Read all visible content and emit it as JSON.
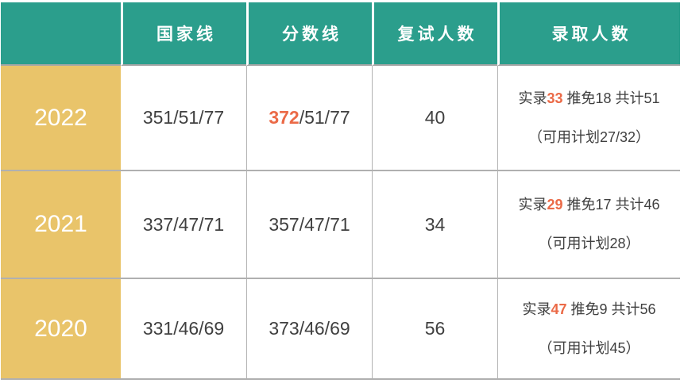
{
  "palette": {
    "header_bg": "#2B9E8C",
    "year_bg": "#E9C46A",
    "accent": "#EB6A47",
    "text_dark": "#404040",
    "grid_line": "#B0B0B0"
  },
  "chart_data": {
    "type": "table",
    "columns": [
      "",
      "国家线",
      "分数线",
      "复试人数",
      "录取人数"
    ],
    "rows": [
      {
        "year": "2022",
        "national_line": "351/51/77",
        "score_parts": {
          "highlight": "372",
          "rest": "/51/77"
        },
        "retest": "40",
        "admit_label": "实录",
        "admit_actual": "33",
        "admit_rest": " 推免18 共计51",
        "admit_plan": "（可用计划27/32）"
      },
      {
        "year": "2021",
        "national_line": "337/47/71",
        "score_parts": {
          "highlight": "",
          "rest": "357/47/71"
        },
        "retest": "34",
        "admit_label": "实录",
        "admit_actual": "29",
        "admit_rest": " 推免17 共计46",
        "admit_plan": "（可用计划28）"
      },
      {
        "year": "2020",
        "national_line": "331/46/69",
        "score_parts": {
          "highlight": "",
          "rest": "373/46/69"
        },
        "retest": "56",
        "admit_label": "实录",
        "admit_actual": "47",
        "admit_rest": " 推免9 共计56",
        "admit_plan": "（可用计划45）"
      }
    ]
  }
}
